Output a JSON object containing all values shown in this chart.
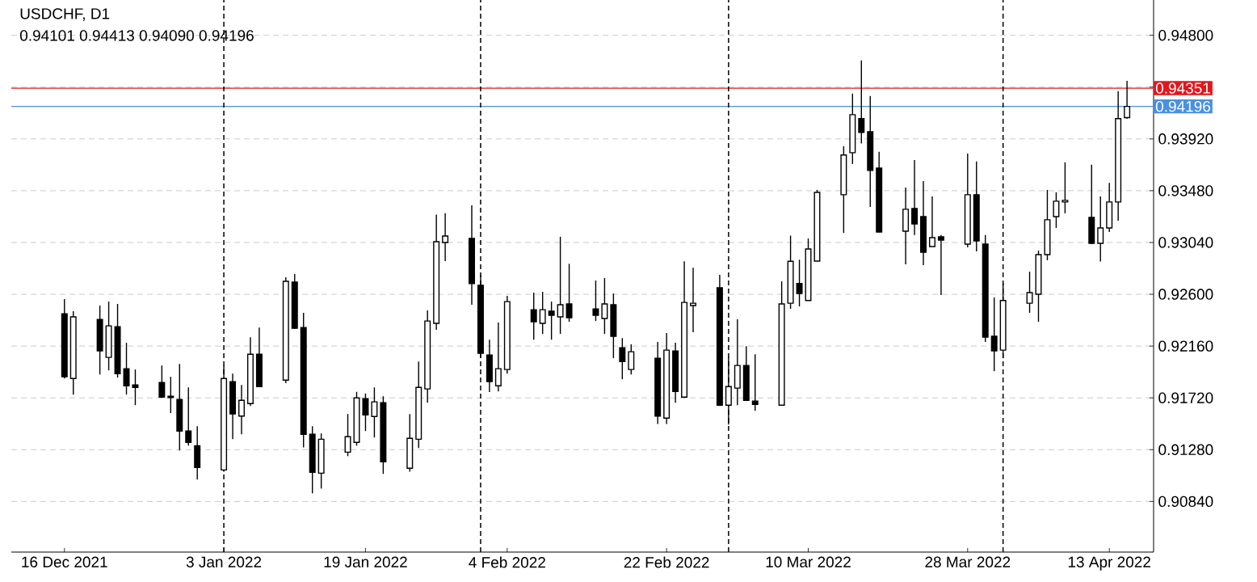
{
  "chart_data": {
    "type": "candlestick",
    "title": "USDCHF, D1",
    "subtitle": "0.94101 0.94413 0.94090 0.94196",
    "x": [
      "2021-12-16",
      "2021-12-17",
      "2021-12-20",
      "2021-12-21",
      "2021-12-22",
      "2021-12-23",
      "2021-12-24",
      "2021-12-27",
      "2021-12-28",
      "2021-12-29",
      "2021-12-30",
      "2021-12-31",
      "2022-01-03",
      "2022-01-04",
      "2022-01-05",
      "2022-01-06",
      "2022-01-07",
      "2022-01-10",
      "2022-01-11",
      "2022-01-12",
      "2022-01-13",
      "2022-01-14",
      "2022-01-17",
      "2022-01-18",
      "2022-01-19",
      "2022-01-20",
      "2022-01-21",
      "2022-01-24",
      "2022-01-25",
      "2022-01-26",
      "2022-01-27",
      "2022-01-28",
      "2022-01-31",
      "2022-02-01",
      "2022-02-02",
      "2022-02-03",
      "2022-02-04",
      "2022-02-07",
      "2022-02-08",
      "2022-02-09",
      "2022-02-10",
      "2022-02-11",
      "2022-02-14",
      "2022-02-15",
      "2022-02-16",
      "2022-02-17",
      "2022-02-18",
      "2022-02-21",
      "2022-02-22",
      "2022-02-23",
      "2022-02-24",
      "2022-02-25",
      "2022-02-28",
      "2022-03-01",
      "2022-03-02",
      "2022-03-03",
      "2022-03-04",
      "2022-03-07",
      "2022-03-08",
      "2022-03-09",
      "2022-03-10",
      "2022-03-11",
      "2022-03-14",
      "2022-03-15",
      "2022-03-16",
      "2022-03-17",
      "2022-03-18",
      "2022-03-21",
      "2022-03-22",
      "2022-03-23",
      "2022-03-24",
      "2022-03-25",
      "2022-03-28",
      "2022-03-29",
      "2022-03-30",
      "2022-03-31",
      "2022-04-01",
      "2022-04-04",
      "2022-04-05",
      "2022-04-06",
      "2022-04-07",
      "2022-04-08",
      "2022-04-11",
      "2022-04-12",
      "2022-04-13",
      "2022-04-14",
      "2022-04-15"
    ],
    "ohlc": [
      [
        0.92435,
        0.92559,
        0.91885,
        0.91899
      ],
      [
        0.91885,
        0.92456,
        0.91748,
        0.92408
      ],
      [
        0.92387,
        0.92504,
        0.91919,
        0.92119
      ],
      [
        0.92064,
        0.92538,
        0.91954,
        0.92332
      ],
      [
        0.92325,
        0.92518,
        0.91892,
        0.91926
      ],
      [
        0.91968,
        0.92188,
        0.91748,
        0.91823
      ],
      [
        0.9183,
        0.91961,
        0.91658,
        0.91809
      ],
      [
        0.91851,
        0.91995,
        0.9172,
        0.91727
      ],
      [
        0.91734,
        0.91899,
        0.91591,
        0.91722
      ],
      [
        0.91707,
        0.92009,
        0.91273,
        0.91438
      ],
      [
        0.91438,
        0.91809,
        0.91314,
        0.91342
      ],
      [
        0.91314,
        0.91479,
        0.91026,
        0.91129
      ],
      [
        0.91108,
        0.91995,
        0.91094,
        0.91885
      ],
      [
        0.91858,
        0.91926,
        0.91369,
        0.91583
      ],
      [
        0.91565,
        0.9183,
        0.91411,
        0.91699
      ],
      [
        0.91672,
        0.92235,
        0.91651,
        0.92091
      ],
      [
        0.92091,
        0.92318,
        0.9181,
        0.91816
      ],
      [
        0.91871,
        0.92744,
        0.91845,
        0.9271
      ],
      [
        0.92703,
        0.92772,
        0.92305,
        0.92311
      ],
      [
        0.92318,
        0.92442,
        0.913,
        0.91411
      ],
      [
        0.91411,
        0.91479,
        0.90909,
        0.91087
      ],
      [
        0.9108,
        0.91418,
        0.9095,
        0.91369
      ],
      [
        0.91259,
        0.91583,
        0.91225,
        0.9139
      ],
      [
        0.91342,
        0.91771,
        0.91314,
        0.9172
      ],
      [
        0.91713,
        0.91757,
        0.91438,
        0.91576
      ],
      [
        0.91562,
        0.91809,
        0.91383,
        0.91686
      ],
      [
        0.91679,
        0.91734,
        0.91074,
        0.91177
      ],
      [
        0.91122,
        0.91583,
        0.91094,
        0.91376
      ],
      [
        0.91369,
        0.92029,
        0.91294,
        0.91809
      ],
      [
        0.91796,
        0.92463,
        0.91679,
        0.92373
      ],
      [
        0.92353,
        0.93277,
        0.92298,
        0.93047
      ],
      [
        0.9304,
        0.93288,
        0.92882,
        0.93095
      ],
      [
        0.93074,
        0.93355,
        0.92511,
        0.92691
      ],
      [
        0.92676,
        0.92765,
        0.92059,
        0.92098
      ],
      [
        0.92084,
        0.92214,
        0.9177,
        0.91858
      ],
      [
        0.91823,
        0.9236,
        0.91775,
        0.91968
      ],
      [
        0.91961,
        0.92586,
        0.91926,
        0.92538
      ],
      [
        0.92469,
        0.92614,
        0.92214,
        0.92366
      ],
      [
        0.92353,
        0.92621,
        0.92263,
        0.92469
      ],
      [
        0.92456,
        0.92538,
        0.92214,
        0.92421
      ],
      [
        0.92408,
        0.93089,
        0.92263,
        0.92511
      ],
      [
        0.92518,
        0.92859,
        0.92366,
        0.92401
      ],
      [
        0.92476,
        0.92717,
        0.92373,
        0.92421
      ],
      [
        0.92394,
        0.92738,
        0.92263,
        0.92518
      ],
      [
        0.92511,
        0.92607,
        0.92057,
        0.92243
      ],
      [
        0.92146,
        0.92228,
        0.91878,
        0.92029
      ],
      [
        0.91961,
        0.92174,
        0.91919,
        0.92112
      ],
      [
        0.92057,
        0.92195,
        0.91499,
        0.91565
      ],
      [
        0.91548,
        0.9227,
        0.91499,
        0.92126
      ],
      [
        0.92119,
        0.92188,
        0.91679,
        0.91775
      ],
      [
        0.91727,
        0.92881,
        0.9172,
        0.92531
      ],
      [
        0.92504,
        0.92826,
        0.92277,
        0.92524
      ],
      [
        0.92655,
        0.92765,
        0.91651,
        0.91658
      ],
      [
        0.91658,
        0.92064,
        0.91493,
        0.91816
      ],
      [
        0.91803,
        0.92387,
        0.91658,
        0.91995
      ],
      [
        0.91995,
        0.9216,
        0.91699,
        0.91699
      ],
      [
        0.91693,
        0.92091,
        0.9161,
        0.91665
      ],
      [
        0.91658,
        0.9271,
        0.91658,
        0.92518
      ],
      [
        0.92524,
        0.93098,
        0.92476,
        0.9288
      ],
      [
        0.92691,
        0.92894,
        0.92497,
        0.92607
      ],
      [
        0.92547,
        0.93074,
        0.92547,
        0.92985
      ],
      [
        0.92882,
        0.93487,
        0.92882,
        0.93466
      ],
      [
        0.93446,
        0.93858,
        0.93121,
        0.93783
      ],
      [
        0.93803,
        0.94305,
        0.93707,
        0.94126
      ],
      [
        0.94092,
        0.94587,
        0.93881,
        0.93975
      ],
      [
        0.93981,
        0.94284,
        0.93342,
        0.93652
      ],
      [
        0.93672,
        0.9381,
        0.93125,
        0.93129
      ],
      [
        0.93136,
        0.93507,
        0.92855,
        0.93322
      ],
      [
        0.93329,
        0.93741,
        0.93104,
        0.93198
      ],
      [
        0.9326,
        0.93562,
        0.92848,
        0.92957
      ],
      [
        0.93006,
        0.93432,
        0.93006,
        0.93081
      ],
      [
        0.93088,
        0.93104,
        0.92593,
        0.93061
      ],
      [
        0.93026,
        0.93796,
        0.92999,
        0.93446
      ],
      [
        0.93446,
        0.93728,
        0.92964,
        0.93054
      ],
      [
        0.93026,
        0.93104,
        0.92195,
        0.92236
      ],
      [
        0.92243,
        0.92573,
        0.91947,
        0.92119
      ],
      [
        0.92126,
        0.92697,
        0.92057,
        0.92547
      ],
      [
        0.92524,
        0.92792,
        0.92442,
        0.92614
      ],
      [
        0.926,
        0.92971,
        0.92366,
        0.92937
      ],
      [
        0.92937,
        0.93487,
        0.92889,
        0.93233
      ],
      [
        0.9326,
        0.93466,
        0.93164,
        0.93391
      ],
      [
        0.93384,
        0.93721,
        0.93288,
        0.93398
      ],
      [
        0.93253,
        0.937,
        0.93026,
        0.93033
      ],
      [
        0.93033,
        0.93432,
        0.92878,
        0.93164
      ],
      [
        0.93164,
        0.93547,
        0.93129,
        0.93384
      ],
      [
        0.93384,
        0.94325,
        0.93226,
        0.94092
      ],
      [
        0.94101,
        0.94413,
        0.9409,
        0.94196
      ]
    ],
    "xlim": [
      "2021-12-10",
      "2022-04-18"
    ],
    "ylim": [
      0.9041,
      0.951
    ],
    "yticks": [
      {
        "value": 0.9084,
        "label": "0.90840"
      },
      {
        "value": 0.9128,
        "label": "0.91280"
      },
      {
        "value": 0.9172,
        "label": "0.91720"
      },
      {
        "value": 0.9216,
        "label": "0.92160"
      },
      {
        "value": 0.926,
        "label": "0.92600"
      },
      {
        "value": 0.9304,
        "label": "0.93040"
      },
      {
        "value": 0.9348,
        "label": "0.93480"
      },
      {
        "value": 0.9392,
        "label": "0.93920"
      },
      {
        "value": 0.9436,
        "label": null
      },
      {
        "value": 0.948,
        "label": "0.94800"
      }
    ],
    "xticks": [
      {
        "value": "2021-12-16",
        "label": "16 Dec 2021"
      },
      {
        "value": "2022-01-03",
        "label": "3 Jan 2022"
      },
      {
        "value": "2022-01-19",
        "label": "19 Jan 2022"
      },
      {
        "value": "2022-02-04",
        "label": "4 Feb 2022"
      },
      {
        "value": "2022-02-22",
        "label": "22 Feb 2022"
      },
      {
        "value": "2022-03-10",
        "label": "10 Mar 2022"
      },
      {
        "value": "2022-03-28",
        "label": "28 Mar 2022"
      },
      {
        "value": "2022-04-13",
        "label": "13 Apr 2022"
      }
    ],
    "ref_lines": [
      {
        "axis": "y",
        "value": 0.94351,
        "label": "0.94351",
        "color": "#e3161b"
      },
      {
        "axis": "y",
        "value": 0.94196,
        "label": "0.94196",
        "color": "#4a90e2"
      },
      {
        "axis": "x",
        "value": "2022-01-03",
        "color": "#000000",
        "line_style": "dashed"
      },
      {
        "axis": "x",
        "value": "2022-02-01",
        "color": "#000000",
        "line_style": "dashed"
      },
      {
        "axis": "x",
        "value": "2022-03-01",
        "color": "#000000",
        "line_style": "dashed"
      },
      {
        "axis": "x",
        "value": "2022-04-01",
        "color": "#000000",
        "line_style": "dashed"
      }
    ],
    "grid": "y"
  }
}
